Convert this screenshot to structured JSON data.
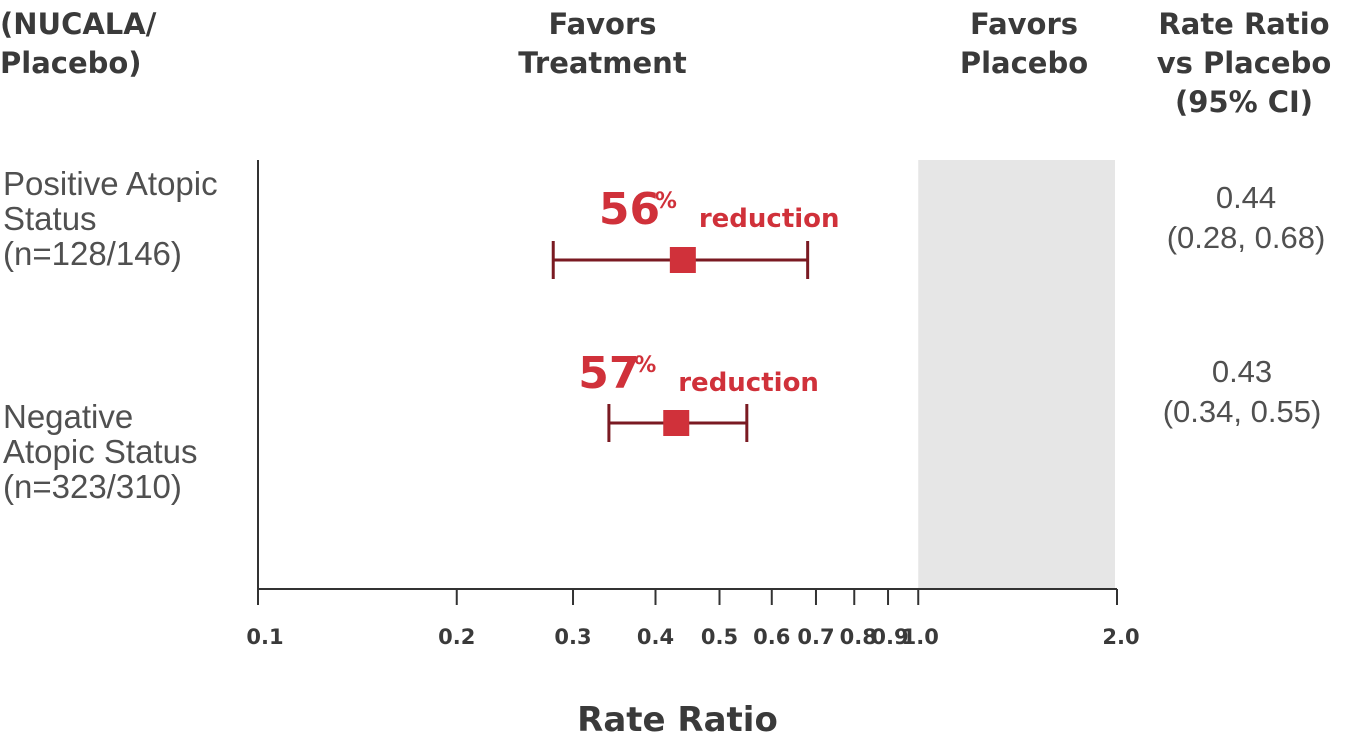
{
  "header": {
    "col1": [
      "(NUCALA/",
      "Placebo)"
    ],
    "favors_treatment": [
      "Favors",
      "Treatment"
    ],
    "favors_placebo": [
      "Favors",
      "Placebo"
    ],
    "rate_ratio": [
      "Rate Ratio",
      "vs Placebo",
      "(95% CI)"
    ]
  },
  "rows": [
    {
      "label": [
        "Positive Atopic",
        "Status",
        "(n=128/146)"
      ],
      "ratio": [
        "0.44",
        "(0.28, 0.68)"
      ]
    },
    {
      "label": [
        "Negative",
        "Atopic Status",
        "(n=323/310)"
      ],
      "ratio": [
        "0.43",
        "(0.34, 0.55)"
      ]
    }
  ],
  "chart_data": {
    "type": "forest",
    "xscale": "log",
    "xlim": [
      0.1,
      2.0
    ],
    "xlabel": "Rate Ratio",
    "x_ticks": [
      "0.1",
      "0.2",
      "0.3",
      "0.4",
      "0.5",
      "0.6",
      "0.7",
      "0.8",
      "0.9",
      "1.0",
      "2.0"
    ],
    "shaded_region": [
      1.0,
      2.0
    ],
    "series": [
      {
        "estimate": 0.44,
        "ci_low": 0.28,
        "ci_high": 0.68,
        "annotation_pct": "56",
        "annotation_sign": "%",
        "annotation_text": "reduction"
      },
      {
        "estimate": 0.43,
        "ci_low": 0.34,
        "ci_high": 0.55,
        "annotation_pct": "57",
        "annotation_sign": "%",
        "annotation_text": "reduction"
      }
    ],
    "colors": {
      "marker": "#d0313a",
      "whisker": "#7a1a22",
      "shade": "#e6e6e6",
      "axis": "#333333",
      "annotation": "#d0313a"
    }
  }
}
